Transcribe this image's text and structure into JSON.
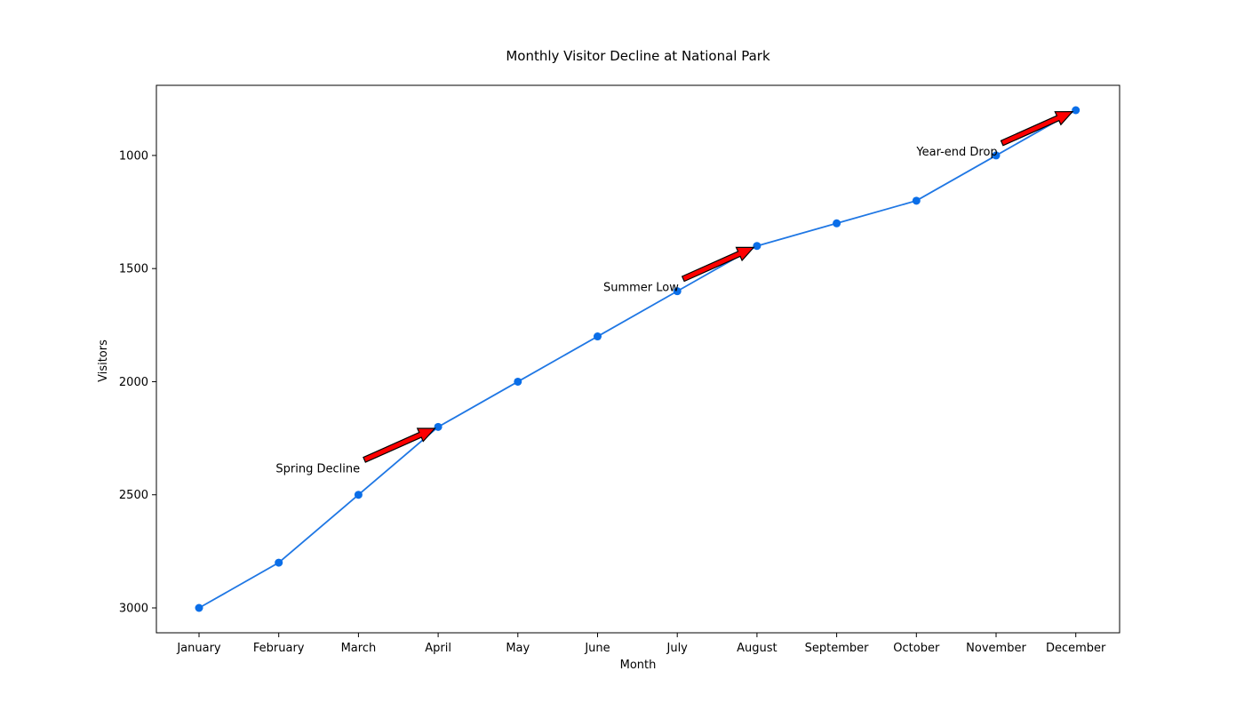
{
  "chart_data": {
    "type": "line",
    "title": "Monthly Visitor Decline at National Park",
    "xlabel": "Month",
    "ylabel": "Visitors",
    "categories": [
      "January",
      "February",
      "March",
      "April",
      "May",
      "June",
      "July",
      "August",
      "September",
      "October",
      "November",
      "December"
    ],
    "series": [
      {
        "values": [
          3000,
          2800,
          2500,
          2200,
          2000,
          1800,
          1600,
          1400,
          1300,
          1200,
          1000,
          800
        ]
      }
    ],
    "ylim": [
      3110,
      690
    ],
    "y_inverted": true,
    "yticks": [
      1000,
      1500,
      2000,
      2500,
      3000
    ],
    "grid": false,
    "legend": "none",
    "line_color": "#1f77e4",
    "marker_color": "#0a6ee8",
    "annotations": [
      {
        "text": "Spring Decline",
        "target_category": "April",
        "target_value": 2200
      },
      {
        "text": "Summer Low",
        "target_category": "August",
        "target_value": 1400
      },
      {
        "text": "Year-end Drop",
        "target_category": "December",
        "target_value": 800
      }
    ],
    "arrow_color": "#ff0000"
  }
}
